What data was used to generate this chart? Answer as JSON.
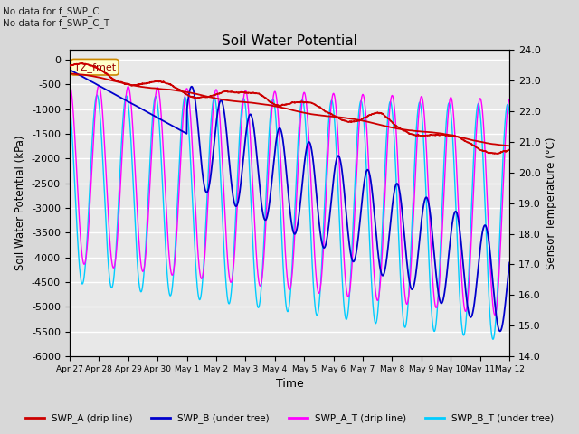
{
  "title": "Soil Water Potential",
  "xlabel": "Time",
  "ylabel_left": "Soil Water Potential (kPa)",
  "ylabel_right": "Sensor Temperature (°C)",
  "ylim_left": [
    -6000,
    200
  ],
  "ylim_right": [
    14.0,
    24.0
  ],
  "yticks_left": [
    0,
    -500,
    -1000,
    -1500,
    -2000,
    -2500,
    -3000,
    -3500,
    -4000,
    -4500,
    -5000,
    -5500,
    -6000
  ],
  "yticks_right": [
    14.0,
    15.0,
    16.0,
    17.0,
    18.0,
    19.0,
    20.0,
    21.0,
    22.0,
    23.0,
    24.0
  ],
  "annotation_text": "TZ_fmet",
  "note_text": "No data for f_SWP_C\nNo data for f_SWP_C_T",
  "colors": {
    "SWP_A": "#cc0000",
    "SWP_B": "#0000cc",
    "SWP_A_T": "#ff00ff",
    "SWP_B_T": "#00ccff"
  },
  "legend": [
    {
      "label": "SWP_A (drip line)",
      "color": "#cc0000"
    },
    {
      "label": "SWP_B (under tree)",
      "color": "#0000cc"
    },
    {
      "label": "SWP_A_T (drip line)",
      "color": "#ff00ff"
    },
    {
      "label": "SWP_B_T (under tree)",
      "color": "#00ccff"
    }
  ],
  "background_color": "#d8d8d8",
  "plot_background": "#e8e8e8",
  "grid_color": "#ffffff",
  "tick_positions": [
    0,
    1,
    2,
    3,
    4,
    5,
    6,
    7,
    8,
    9,
    10,
    11,
    12,
    13,
    14,
    15
  ],
  "tick_labels": [
    "Apr 27",
    "Apr 28",
    "Apr 29",
    "Apr 30",
    "May 1",
    "May 2",
    "May 3",
    "May 4",
    "May 5",
    "May 6",
    "May 7",
    "May 8",
    "May 9",
    "May 10",
    "May 11",
    "May 12"
  ]
}
